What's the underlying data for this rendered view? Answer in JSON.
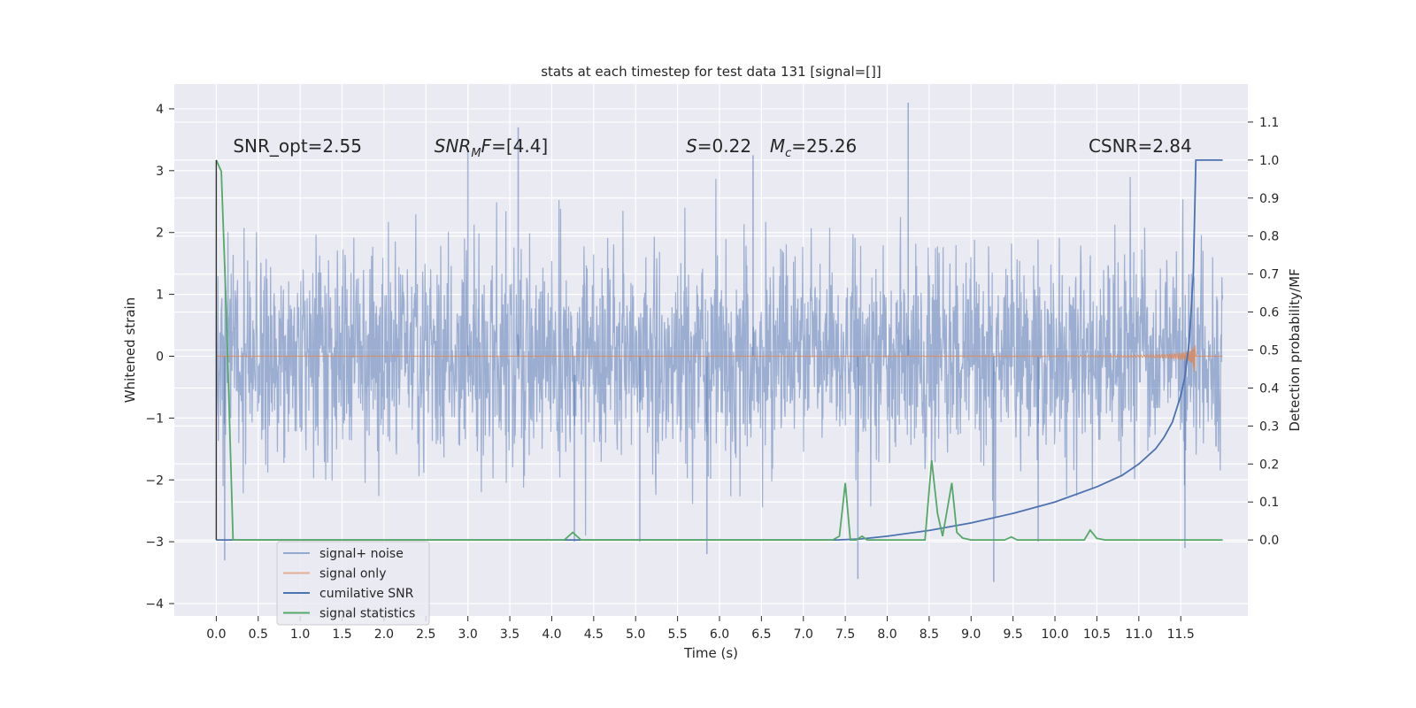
{
  "chart_data": {
    "type": "line",
    "title": "stats at each timestep for test data 131 [signal=[]]",
    "xlabel": "Time (s)",
    "ylabel": "Whitened strain",
    "ylabel_right": "Detection probability/MF",
    "xlim": [
      -0.5,
      12.3
    ],
    "ylim": [
      -4.2,
      4.4
    ],
    "ylim_right": [
      -0.2,
      1.2
    ],
    "x_ticks": [
      0.0,
      0.5,
      1.0,
      1.5,
      2.0,
      2.5,
      3.0,
      3.5,
      4.0,
      4.5,
      5.0,
      5.5,
      6.0,
      6.5,
      7.0,
      7.5,
      8.0,
      8.5,
      9.0,
      9.5,
      10.0,
      10.5,
      11.0,
      11.5
    ],
    "x_tick_labels": [
      "0.0",
      "0.5",
      "1.0",
      "1.5",
      "2.0",
      "2.5",
      "3.0",
      "3.5",
      "4.0",
      "4.5",
      "5.0",
      "5.5",
      "6.0",
      "6.5",
      "7.0",
      "7.5",
      "8.0",
      "8.5",
      "9.0",
      "9.5",
      "10.0",
      "10.5",
      "11.0",
      "11.5"
    ],
    "y_ticks": [
      -4,
      -3,
      -2,
      -1,
      0,
      1,
      2,
      3,
      4
    ],
    "y_tick_labels": [
      "−4",
      "−3",
      "−2",
      "−1",
      "0",
      "1",
      "2",
      "3",
      "4"
    ],
    "y_ticks_right": [
      0.0,
      0.1,
      0.2,
      0.3,
      0.4,
      0.5,
      0.6,
      0.7,
      0.8,
      0.9,
      1.0,
      1.1
    ],
    "y_tick_labels_right": [
      "0.0",
      "0.1",
      "0.2",
      "0.3",
      "0.4",
      "0.5",
      "0.6",
      "0.7",
      "0.8",
      "0.9",
      "1.0",
      "1.1"
    ],
    "grid": true,
    "legend_position": "lower-left",
    "annotations": [
      {
        "text": "SNR_opt=2.55",
        "x": 0.2,
        "y": 3.3
      },
      {
        "text": "SNR_MF=[4.4]",
        "x": 2.6,
        "y": 3.3,
        "math": "SNR",
        "sub": "M",
        "rest": "F=[4.4]"
      },
      {
        "text": "S=0.22",
        "x": 5.6,
        "y": 3.3,
        "math": "S",
        "rest": "=0.22"
      },
      {
        "text": "M_c=25.26",
        "x": 6.6,
        "y": 3.3,
        "math": "M",
        "sub": "c",
        "rest": "=25.26"
      },
      {
        "text": "CSNR=2.84",
        "x": 10.4,
        "y": 3.3
      }
    ],
    "series": [
      {
        "name": "signal+ noise",
        "axis": "left",
        "color": "#4c72b0",
        "opacity": 0.5,
        "style": "dense noise, approximately N(0, 0.85) between x=0 and x=12",
        "spikes": [
          [
            3.6,
            3.7
          ],
          [
            4.27,
            -3.0
          ],
          [
            5.05,
            -3.0
          ],
          [
            5.85,
            -3.2
          ],
          [
            6.4,
            3.25
          ],
          [
            7.65,
            -3.6
          ],
          [
            8.25,
            4.1
          ],
          [
            9.27,
            -3.65
          ],
          [
            11.55,
            -3.1
          ],
          [
            0.1,
            -3.3
          ],
          [
            3.0,
            3.3
          ],
          [
            9.8,
            -3.0
          ]
        ]
      },
      {
        "name": "signal only",
        "axis": "left",
        "color": "#dd8452",
        "style": "chirp, zero until ~8.0 s, amplitude peaks ~0.5 at 11.68 s"
      },
      {
        "name": "cumilative SNR",
        "axis": "right",
        "color": "#4c72b0",
        "x": [
          0.0,
          7.4,
          7.7,
          8.0,
          8.5,
          9.0,
          9.5,
          10.0,
          10.5,
          10.8,
          11.0,
          11.2,
          11.3,
          11.4,
          11.5,
          11.55,
          11.6,
          11.65,
          11.68,
          12.0
        ],
        "y": [
          0.0,
          0.0,
          0.003,
          0.01,
          0.025,
          0.045,
          0.07,
          0.1,
          0.14,
          0.17,
          0.2,
          0.24,
          0.27,
          0.31,
          0.38,
          0.43,
          0.52,
          0.7,
          1.0,
          1.0
        ]
      },
      {
        "name": "signal statistics",
        "axis": "right",
        "color": "#55a868",
        "x": [
          0.0,
          0.06,
          0.12,
          0.2,
          0.5,
          4.15,
          4.25,
          4.35,
          7.35,
          7.43,
          7.5,
          7.56,
          7.63,
          7.7,
          7.76,
          8.45,
          8.53,
          8.6,
          8.66,
          8.7,
          8.77,
          8.83,
          8.9,
          9.0,
          9.4,
          9.48,
          9.55,
          10.35,
          10.42,
          10.5,
          10.6,
          11.9,
          12.0
        ],
        "y": [
          1.0,
          0.97,
          0.6,
          0.0,
          0.0,
          0.0,
          0.02,
          0.0,
          0.0,
          0.01,
          0.15,
          0.0,
          0.0,
          0.01,
          0.0,
          0.0,
          0.21,
          0.07,
          0.01,
          0.06,
          0.15,
          0.02,
          0.005,
          0.0,
          0.0,
          0.008,
          0.0,
          0.0,
          0.026,
          0.004,
          0.0,
          0.0,
          0.0
        ]
      }
    ],
    "legend": [
      {
        "label": "signal+ noise",
        "color": "#4c72b0",
        "opacity": 0.55
      },
      {
        "label": "signal only",
        "color": "#dd8452",
        "opacity": 0.6
      },
      {
        "label": "cumilative SNR",
        "color": "#4c72b0",
        "opacity": 1
      },
      {
        "label": "signal statistics",
        "color": "#55a868",
        "opacity": 1
      }
    ],
    "colors": {
      "plot_background": "#eaeaf2",
      "grid": "#ffffff",
      "text": "#262626",
      "legend_frame": "#cccccc"
    }
  }
}
